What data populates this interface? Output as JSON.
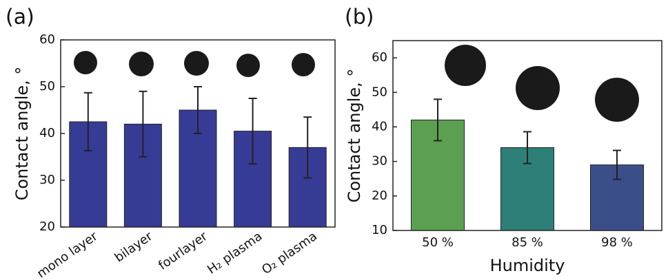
{
  "chart_data": [
    {
      "type": "bar",
      "panel_label": "(a)",
      "ylabel": "Contact angle, °",
      "categories": [
        "mono layer",
        "bilayer",
        "fourlayer",
        "H₂ plasma",
        "O₂ plasma"
      ],
      "values": [
        42.5,
        42,
        45,
        40.5,
        37
      ],
      "errors": [
        6.2,
        7,
        5,
        7,
        6.5
      ],
      "colors": [
        "#363c96",
        "#363c96",
        "#363c96",
        "#363c96",
        "#363c96"
      ],
      "ylim": [
        20,
        60
      ],
      "yticks": [
        20,
        30,
        40,
        50,
        60
      ]
    },
    {
      "type": "bar",
      "panel_label": "(b)",
      "ylabel": "Contact angle, °",
      "xlabel": "Humidity",
      "categories": [
        "50 %",
        "85 %",
        "98 %"
      ],
      "values": [
        42,
        34,
        29
      ],
      "errors": [
        6,
        4.6,
        4.2
      ],
      "colors": [
        "#5aa050",
        "#2e7f78",
        "#3a4f8a"
      ],
      "ylim": [
        10,
        65
      ],
      "yticks": [
        10,
        20,
        30,
        40,
        50,
        60
      ]
    }
  ]
}
